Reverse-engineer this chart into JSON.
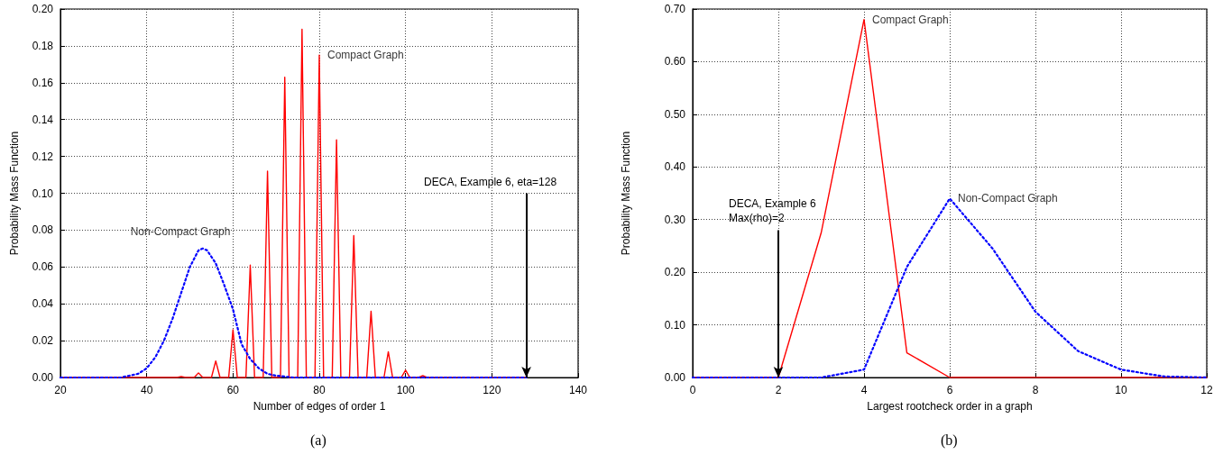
{
  "chart_data": [
    {
      "type": "line",
      "xlabel": "Number of edges of order 1",
      "ylabel": "Probability Mass Function",
      "series": [
        {
          "color": "#ff0000",
          "line_style": "solid",
          "x": [
            20,
            47,
            48,
            49,
            51,
            52,
            53,
            55,
            56,
            57,
            59,
            60,
            61,
            63,
            64,
            65,
            67,
            68,
            69,
            71,
            72,
            73,
            75,
            76,
            77,
            79,
            80,
            81,
            83,
            84,
            85,
            87,
            88,
            89,
            91,
            92,
            93,
            95,
            96,
            97,
            99,
            100,
            101,
            103,
            104,
            105,
            128
          ],
          "values": [
            0,
            0,
            0.0005,
            0,
            0,
            0.0025,
            0,
            0,
            0.009,
            0,
            0,
            0.026,
            0,
            0,
            0.061,
            0,
            0,
            0.112,
            0,
            0,
            0.163,
            0,
            0,
            0.189,
            0,
            0,
            0.175,
            0,
            0,
            0.129,
            0,
            0,
            0.077,
            0,
            0,
            0.036,
            0,
            0,
            0.014,
            0,
            0,
            0.004,
            0,
            0,
            0.001,
            0,
            0
          ]
        },
        {
          "color": "#0000ff",
          "line_style": "dotted",
          "x": [
            20,
            34,
            36,
            38,
            40,
            42,
            44,
            46,
            48,
            50,
            52,
            53,
            54,
            56,
            58,
            60,
            62,
            64,
            66,
            68,
            70,
            72,
            74,
            128
          ],
          "values": [
            0,
            0,
            0.001,
            0.002,
            0.005,
            0.011,
            0.02,
            0.032,
            0.046,
            0.06,
            0.069,
            0.07,
            0.069,
            0.062,
            0.05,
            0.037,
            0.018,
            0.01,
            0.005,
            0.002,
            0.001,
            0.0005,
            0,
            0
          ]
        }
      ],
      "xlim": [
        20,
        140
      ],
      "xticks": [
        20,
        40,
        60,
        80,
        100,
        120,
        140
      ],
      "ylim": [
        0,
        0.2
      ],
      "yticks": [
        {
          "value": 0,
          "label": "0.00"
        },
        {
          "value": 0.02,
          "label": "0.02"
        },
        {
          "value": 0.04,
          "label": "0.04"
        },
        {
          "value": 0.06,
          "label": "0.06"
        },
        {
          "value": 0.08,
          "label": "0.08"
        },
        {
          "value": 0.1,
          "label": "0.10"
        },
        {
          "value": 0.12,
          "label": "0.12"
        },
        {
          "value": 0.14,
          "label": "0.14"
        },
        {
          "value": 0.16,
          "label": "0.16"
        },
        {
          "value": 0.18,
          "label": "0.18"
        },
        {
          "value": 0.2,
          "label": "0.20"
        }
      ],
      "grid": true,
      "marker": "none",
      "annotations": [
        {
          "text": "Compact Graph",
          "x": 80,
          "y": 0.175
        },
        {
          "text": "Non-Compact Graph",
          "x": 52,
          "y": 0.07
        },
        {
          "text": "DECA, Example 6, eta=128",
          "x": 128,
          "y": 0
        },
        "(a)"
      ]
    },
    {
      "type": "line",
      "xlabel": "Largest rootcheck order in a graph",
      "ylabel": "Probability Mass Function",
      "series": [
        {
          "color": "#ff0000",
          "line_style": "solid",
          "x": [
            0,
            1,
            2,
            3,
            4,
            5,
            6,
            7,
            8,
            9,
            10,
            11,
            12
          ],
          "values": [
            0,
            0,
            0,
            0.275,
            0.68,
            0.047,
            0,
            0,
            0,
            0,
            0,
            0,
            0
          ]
        },
        {
          "color": "#0000ff",
          "line_style": "dotted",
          "x": [
            0,
            1,
            2,
            3,
            4,
            5,
            6,
            7,
            8,
            9,
            10,
            11,
            12
          ],
          "values": [
            0,
            0,
            0,
            0,
            0.015,
            0.21,
            0.34,
            0.245,
            0.125,
            0.05,
            0.015,
            0.002,
            0
          ]
        }
      ],
      "xlim": [
        0,
        12
      ],
      "xticks": [
        0,
        2,
        4,
        6,
        8,
        10,
        12
      ],
      "ylim": [
        0,
        0.7
      ],
      "yticks": [
        {
          "value": 0,
          "label": "0.00"
        },
        {
          "value": 0.1,
          "label": "0.10"
        },
        {
          "value": 0.2,
          "label": "0.20"
        },
        {
          "value": 0.3,
          "label": "0.30"
        },
        {
          "value": 0.4,
          "label": "0.40"
        },
        {
          "value": 0.5,
          "label": "0.50"
        },
        {
          "value": 0.6,
          "label": "0.60"
        },
        {
          "value": 0.7,
          "label": "0.70"
        }
      ],
      "grid": true,
      "marker": "none",
      "annotations": [
        {
          "text": "Compact Graph",
          "x": 4,
          "y": 0.68
        },
        {
          "text": "Non-Compact Graph",
          "x": 6,
          "y": 0.34
        },
        {
          "text": "DECA, Example 6\nMax(rho)=2",
          "x": 2,
          "y": 0
        },
        "(b)"
      ]
    }
  ]
}
